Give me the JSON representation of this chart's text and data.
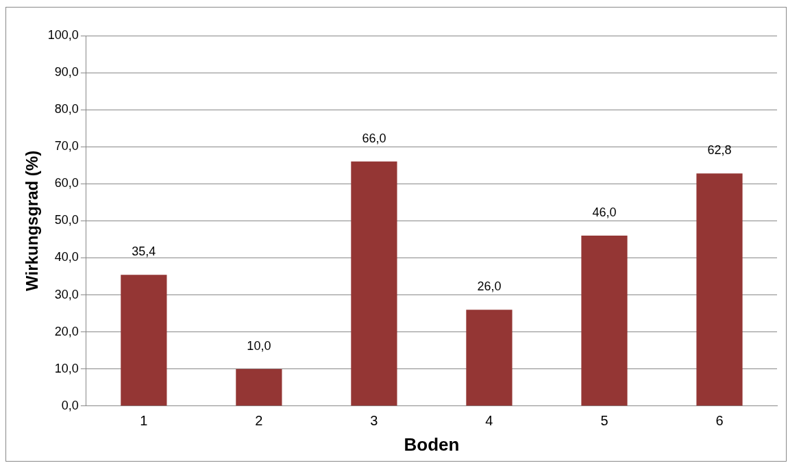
{
  "chart_data": {
    "type": "bar",
    "xlabel": "Boden",
    "ylabel": "Wirkungsgrad (%)",
    "categories": [
      "1",
      "2",
      "3",
      "4",
      "5",
      "6"
    ],
    "values": [
      35.4,
      10.0,
      66.0,
      26.0,
      46.0,
      62.8
    ],
    "value_labels": [
      "35,4",
      "10,0",
      "66,0",
      "26,0",
      "46,0",
      "62,8"
    ],
    "color": "#943634",
    "ylim": [
      0,
      100
    ],
    "yticks": [
      {
        "value": 0,
        "label": "0,0"
      },
      {
        "value": 10,
        "label": "10,0"
      },
      {
        "value": 20,
        "label": "20,0"
      },
      {
        "value": 30,
        "label": "30,0"
      },
      {
        "value": 40,
        "label": "40,0"
      },
      {
        "value": 50,
        "label": "50,0"
      },
      {
        "value": 60,
        "label": "60,0"
      },
      {
        "value": 70,
        "label": "70,0"
      },
      {
        "value": 80,
        "label": "80,0"
      },
      {
        "value": 90,
        "label": "90,0"
      },
      {
        "value": 100,
        "label": "100,0"
      }
    ],
    "grid": "y"
  }
}
